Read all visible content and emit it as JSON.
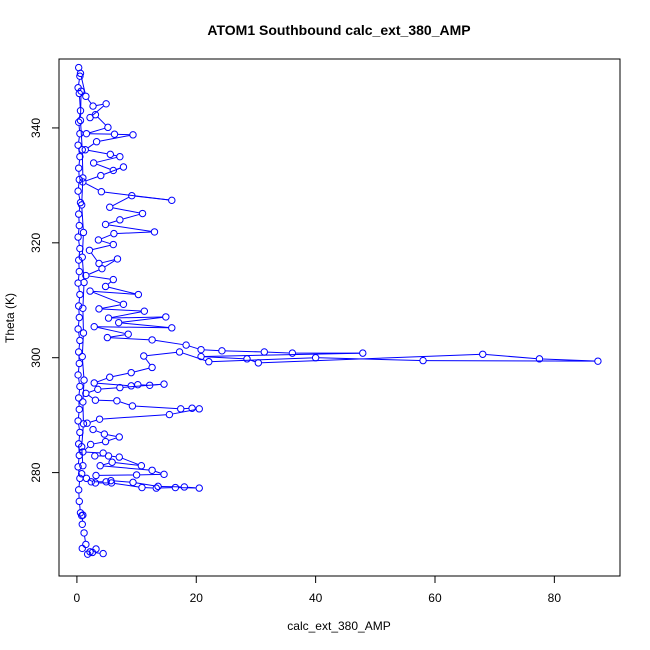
{
  "chart_data": {
    "type": "line",
    "title": "ATOM1 Southbound calc_ext_380_AMP",
    "xlabel": "calc_ext_380_AMP",
    "ylabel": "Theta (K)",
    "xlim": [
      -3,
      91
    ],
    "ylim": [
      262,
      352
    ],
    "x_ticks": [
      0,
      20,
      40,
      60,
      80
    ],
    "y_ticks": [
      280,
      300,
      320,
      340
    ],
    "grid": false,
    "marker": "open-circle",
    "color": "#0000ff",
    "series": [
      {
        "points": [
          [
            0.3,
            350.5
          ],
          [
            0.5,
            349
          ],
          [
            0.2,
            347
          ],
          [
            0.4,
            346
          ],
          [
            0.6,
            343
          ],
          [
            0.3,
            341
          ],
          [
            0.5,
            339
          ],
          [
            0.2,
            337
          ],
          [
            0.5,
            335
          ],
          [
            0.3,
            333
          ],
          [
            0.4,
            331
          ],
          [
            0.2,
            329
          ],
          [
            0.6,
            327
          ],
          [
            0.3,
            325
          ],
          [
            0.4,
            323
          ],
          [
            0.2,
            321
          ],
          [
            0.5,
            319
          ],
          [
            0.3,
            317
          ],
          [
            0.4,
            315
          ],
          [
            0.2,
            313
          ],
          [
            0.5,
            311
          ],
          [
            0.3,
            309
          ],
          [
            0.4,
            307
          ],
          [
            0.2,
            305
          ],
          [
            0.5,
            303
          ],
          [
            0.3,
            301
          ],
          [
            0.4,
            299
          ],
          [
            0.2,
            297
          ],
          [
            0.5,
            295
          ],
          [
            0.3,
            293
          ],
          [
            0.4,
            291
          ],
          [
            0.2,
            289
          ],
          [
            0.5,
            287
          ],
          [
            0.3,
            285
          ],
          [
            0.4,
            283
          ],
          [
            0.2,
            281
          ],
          [
            0.5,
            279
          ],
          [
            0.3,
            277
          ],
          [
            0.4,
            275
          ],
          [
            0.6,
            273
          ],
          [
            0.8,
            272.5
          ],
          [
            1.0,
            272.6
          ],
          [
            0.9,
            271
          ],
          [
            1.2,
            269.5
          ],
          [
            1.5,
            267.5
          ],
          [
            0.9,
            266.8
          ],
          [
            2.2,
            266.2
          ],
          [
            1.8,
            265.8
          ],
          [
            2.6,
            266.1
          ],
          [
            4.4,
            265.9
          ],
          [
            3.2,
            266.7
          ]
        ]
      },
      {
        "points": [
          [
            0.6,
            349.5
          ],
          [
            1.5,
            345.5
          ],
          [
            2.7,
            343.8
          ],
          [
            4.9,
            344.2
          ],
          [
            2.2,
            341.8
          ],
          [
            3.1,
            342.3
          ],
          [
            5.2,
            340.1
          ],
          [
            1.6,
            339
          ],
          [
            6.3,
            338.9
          ],
          [
            9.4,
            338.8
          ],
          [
            3.3,
            337.6
          ],
          [
            1.4,
            336.2
          ],
          [
            5.6,
            335.4
          ],
          [
            7.2,
            335
          ],
          [
            2.8,
            333.9
          ],
          [
            6.1,
            332.6
          ],
          [
            7.8,
            333.2
          ],
          [
            4.0,
            331.7
          ],
          [
            1.0,
            330.6
          ],
          [
            4.1,
            328.9
          ],
          [
            15.9,
            327.4
          ],
          [
            9.2,
            328.2
          ],
          [
            5.5,
            326.2
          ],
          [
            11.0,
            325.1
          ],
          [
            7.2,
            324
          ],
          [
            4.8,
            323.2
          ],
          [
            13.0,
            321.9
          ],
          [
            6.2,
            321.6
          ],
          [
            3.6,
            320.5
          ],
          [
            6.1,
            319.7
          ],
          [
            2.1,
            318.7
          ],
          [
            3.7,
            316.4
          ],
          [
            6.8,
            317.2
          ],
          [
            4.2,
            315.5
          ],
          [
            1.5,
            314.3
          ],
          [
            6.1,
            313.6
          ],
          [
            4.8,
            312.4
          ],
          [
            10.3,
            311
          ],
          [
            2.2,
            311.6
          ],
          [
            7.8,
            309.3
          ],
          [
            3.7,
            308.5
          ],
          [
            11.3,
            308.1
          ],
          [
            5.3,
            306.9
          ],
          [
            14.9,
            307.1
          ],
          [
            7.0,
            306.1
          ],
          [
            15.9,
            305.2
          ],
          [
            2.9,
            305.4
          ],
          [
            8.6,
            304.1
          ],
          [
            5.1,
            303.5
          ],
          [
            12.6,
            303.1
          ],
          [
            18.3,
            302.2
          ],
          [
            20.8,
            301.4
          ],
          [
            24.3,
            301.2
          ],
          [
            31.4,
            301
          ],
          [
            36.1,
            300.8
          ],
          [
            47.9,
            300.8
          ],
          [
            20.8,
            300.2
          ],
          [
            28.5,
            299.8
          ],
          [
            30.4,
            299.1
          ],
          [
            68.0,
            300.6
          ],
          [
            77.5,
            299.8
          ],
          [
            87.3,
            299.4
          ],
          [
            58.0,
            299.5
          ],
          [
            40.0,
            300.0
          ],
          [
            22.1,
            299.3
          ],
          [
            17.2,
            301
          ],
          [
            11.2,
            300.3
          ],
          [
            12.6,
            298.3
          ],
          [
            9.1,
            297.4
          ],
          [
            5.5,
            296.6
          ],
          [
            2.9,
            295.6
          ],
          [
            9.1,
            295.1
          ],
          [
            10.2,
            295.3
          ],
          [
            12.2,
            295.2
          ],
          [
            14.6,
            295.4
          ],
          [
            7.2,
            294.8
          ],
          [
            3.5,
            294.5
          ],
          [
            1.5,
            293.8
          ],
          [
            3.1,
            292.6
          ],
          [
            6.7,
            292.5
          ],
          [
            9.3,
            291.6
          ],
          [
            17.4,
            291.1
          ],
          [
            19.3,
            291.2
          ],
          [
            20.5,
            291.1
          ],
          [
            15.5,
            290.1
          ],
          [
            3.8,
            289.3
          ],
          [
            1.7,
            288.6
          ],
          [
            2.7,
            287.5
          ],
          [
            4.6,
            286.7
          ],
          [
            7.1,
            286.2
          ],
          [
            4.8,
            285.4
          ],
          [
            2.3,
            284.9
          ],
          [
            1.0,
            283.6
          ],
          [
            4.4,
            283.4
          ],
          [
            3.0,
            282.9
          ],
          [
            5.3,
            282.9
          ],
          [
            7.1,
            282.7
          ],
          [
            10.8,
            281.2
          ],
          [
            5.9,
            281.8
          ],
          [
            3.9,
            281.2
          ],
          [
            12.6,
            280.4
          ],
          [
            14.6,
            279.7
          ],
          [
            10.0,
            279.6
          ],
          [
            3.2,
            279.5
          ],
          [
            2.4,
            278.4
          ],
          [
            4.9,
            278.4
          ],
          [
            5.7,
            278.6
          ],
          [
            9.4,
            278.3
          ],
          [
            13.6,
            277.6
          ],
          [
            18.0,
            277.5
          ],
          [
            20.5,
            277.3
          ],
          [
            16.5,
            277.4
          ],
          [
            13.3,
            277.3
          ],
          [
            10.9,
            277.4
          ],
          [
            5.8,
            278.2
          ],
          [
            3.1,
            278.2
          ],
          [
            1.6,
            279
          ],
          [
            0.8,
            279.8
          ]
        ]
      },
      {
        "points": [
          [
            0.7,
            346.4
          ],
          [
            0.6,
            341.3
          ],
          [
            0.9,
            336.2
          ],
          [
            1.0,
            331.3
          ],
          [
            0.8,
            326.6
          ],
          [
            1.1,
            321.8
          ],
          [
            0.9,
            317.5
          ],
          [
            1.2,
            313.1
          ],
          [
            1.0,
            308.6
          ],
          [
            1.1,
            304.3
          ],
          [
            0.9,
            300.2
          ],
          [
            1.2,
            296.1
          ],
          [
            1.0,
            292.3
          ],
          [
            1.1,
            288.5
          ],
          [
            0.8,
            284.5
          ],
          [
            1.0,
            281.2
          ]
        ]
      }
    ]
  }
}
